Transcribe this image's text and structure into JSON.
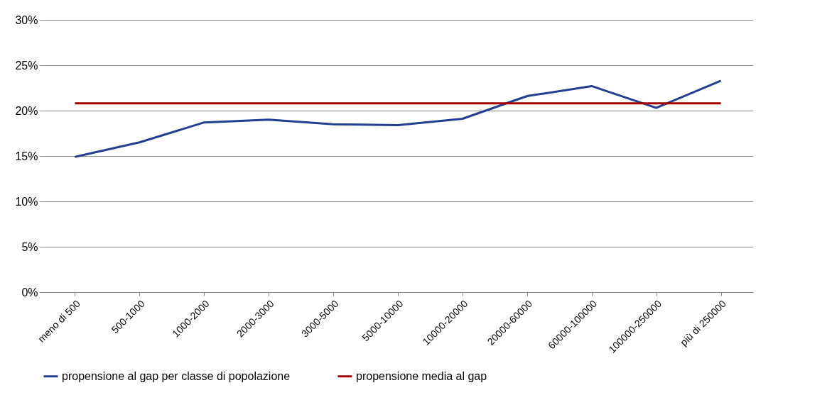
{
  "chart_data": {
    "type": "line",
    "categories": [
      "meno di 500",
      "500-1000",
      "1000-2000",
      "2000-3000",
      "3000-5000",
      "5000-10000",
      "10000-20000",
      "20000-60000",
      "60000-100000",
      "100000-250000",
      "più di 250000"
    ],
    "series": [
      {
        "name": "propensione al gap per classe di popolazione",
        "color": "#253f8f",
        "values": [
          14.9,
          16.5,
          18.7,
          19.0,
          18.5,
          18.4,
          19.1,
          21.6,
          22.7,
          20.3,
          23.3
        ]
      },
      {
        "name": "propensione media al gap",
        "color": "#a00000",
        "values": [
          20.8,
          20.8,
          20.8,
          20.8,
          20.8,
          20.8,
          20.8,
          20.8,
          20.8,
          20.8,
          20.8
        ]
      }
    ],
    "ylim": [
      0,
      30
    ],
    "yticks": [
      {
        "value": 0,
        "label": "0%"
      },
      {
        "value": 5,
        "label": "5%"
      },
      {
        "value": 10,
        "label": "10%"
      },
      {
        "value": 15,
        "label": "15%"
      },
      {
        "value": 20,
        "label": "20%"
      },
      {
        "value": 25,
        "label": "25%"
      },
      {
        "value": 30,
        "label": "30%"
      }
    ],
    "grid": "y",
    "legend": "bottom",
    "marker": "none",
    "line_style": "solid"
  }
}
